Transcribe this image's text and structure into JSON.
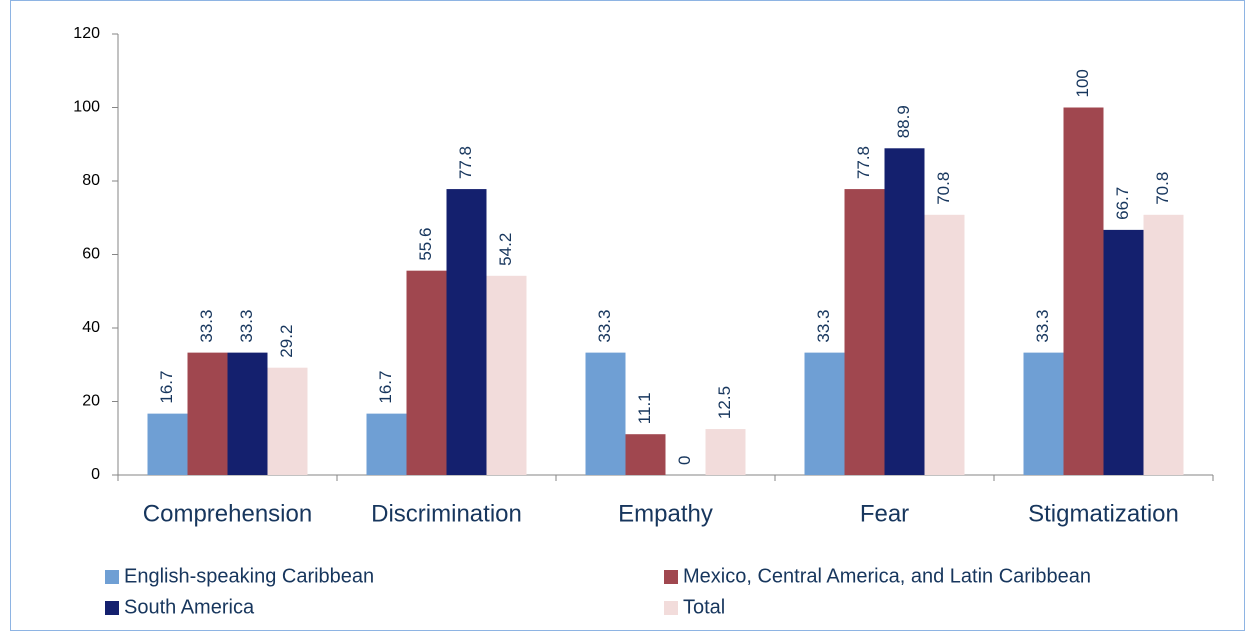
{
  "chart_data": {
    "type": "bar",
    "categories": [
      "Comprehension",
      "Discrimination",
      "Empathy",
      "Fear",
      "Stigmatization"
    ],
    "series": [
      {
        "name": "English-speaking Caribbean",
        "color": "#6f9fd4",
        "values": [
          16.7,
          16.7,
          33.3,
          33.3,
          33.3
        ]
      },
      {
        "name": "Mexico, Central America, and Latin Caribbean",
        "color": "#a0474f",
        "values": [
          33.3,
          55.6,
          11.1,
          77.8,
          100
        ]
      },
      {
        "name": "South America",
        "color": "#14206e",
        "values": [
          33.3,
          77.8,
          0,
          88.9,
          66.7
        ]
      },
      {
        "name": "Total",
        "color": "#f2dcdb",
        "values": [
          29.2,
          54.2,
          12.5,
          70.8,
          70.8
        ]
      }
    ],
    "ylim": [
      0,
      120
    ],
    "yticks": [
      0,
      20,
      40,
      60,
      80,
      100,
      120
    ],
    "grid": false,
    "data_labels": true
  }
}
